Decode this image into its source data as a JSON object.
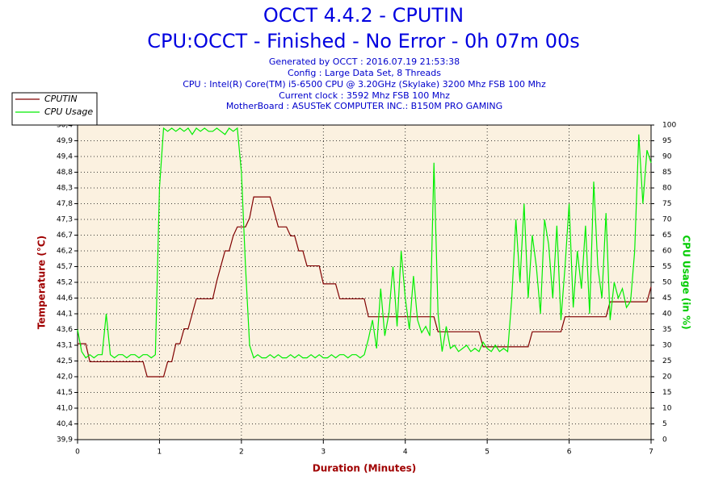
{
  "chart_data": {
    "type": "line",
    "title": "OCCT 4.4.2 - CPUTIN",
    "subtitle": "CPU:OCCT - Finished - No Error - 0h 07m 00s",
    "info": [
      "Generated by OCCT : 2016.07.19 21:53:38",
      "Config : Large Data Set, 8 Threads",
      "CPU : Intel(R) Core(TM) i5-6500 CPU @ 3.20GHz (Skylake) 3200 Mhz FSB 100 Mhz",
      "Current clock : 3592 Mhz FSB 100 Mhz",
      "MotherBoard : ASUSTeK COMPUTER INC.: B150M PRO GAMING"
    ],
    "x_label": "Duration (Minutes)",
    "y_label": "Temperature (°C)",
    "y2_label": "CPU Usage (in %)",
    "grid": true,
    "legend": "upper-left",
    "xlim": [
      0,
      7
    ],
    "xticks": [
      0,
      1,
      2,
      3,
      4,
      5,
      6,
      7
    ],
    "ylim": [
      39.9,
      50.4
    ],
    "yticks": [
      {
        "value": 39.9,
        "label": "39,9"
      },
      {
        "value": 40.425,
        "label": "40,4"
      },
      {
        "value": 40.95,
        "label": "41,0"
      },
      {
        "value": 41.475,
        "label": "41,5"
      },
      {
        "value": 42.0,
        "label": "42,0"
      },
      {
        "value": 42.525,
        "label": "42,5"
      },
      {
        "value": 43.05,
        "label": "43,1"
      },
      {
        "value": 43.575,
        "label": "43,6"
      },
      {
        "value": 44.1,
        "label": "44,1"
      },
      {
        "value": 44.625,
        "label": "44,6"
      },
      {
        "value": 45.15,
        "label": "45,2"
      },
      {
        "value": 45.675,
        "label": "45,7"
      },
      {
        "value": 46.2,
        "label": "46,2"
      },
      {
        "value": 46.725,
        "label": "46,7"
      },
      {
        "value": 47.25,
        "label": "47,3"
      },
      {
        "value": 47.775,
        "label": "47,8"
      },
      {
        "value": 48.3,
        "label": "48,3"
      },
      {
        "value": 48.825,
        "label": "48,8"
      },
      {
        "value": 49.35,
        "label": "49,4"
      },
      {
        "value": 49.875,
        "label": "49,9"
      },
      {
        "value": 50.4,
        "label": "50,4"
      }
    ],
    "y2lim": [
      0,
      100
    ],
    "y2ticks": [
      0,
      5,
      10,
      15,
      20,
      25,
      30,
      35,
      40,
      45,
      50,
      55,
      60,
      65,
      70,
      75,
      80,
      85,
      90,
      95,
      100
    ],
    "x": [
      0,
      0.05,
      0.1,
      0.15,
      0.2,
      0.25,
      0.3,
      0.35,
      0.4,
      0.45,
      0.5,
      0.55,
      0.6,
      0.65,
      0.7,
      0.75,
      0.8,
      0.85,
      0.9,
      0.95,
      1,
      1.05,
      1.1,
      1.15,
      1.2,
      1.25,
      1.3,
      1.35,
      1.4,
      1.45,
      1.5,
      1.55,
      1.6,
      1.65,
      1.7,
      1.75,
      1.8,
      1.85,
      1.9,
      1.95,
      2,
      2.05,
      2.1,
      2.15,
      2.2,
      2.25,
      2.3,
      2.35,
      2.4,
      2.45,
      2.5,
      2.55,
      2.6,
      2.65,
      2.7,
      2.75,
      2.8,
      2.85,
      2.9,
      2.95,
      3,
      3.05,
      3.1,
      3.15,
      3.2,
      3.25,
      3.3,
      3.35,
      3.4,
      3.45,
      3.5,
      3.55,
      3.6,
      3.65,
      3.7,
      3.75,
      3.8,
      3.85,
      3.9,
      3.95,
      4,
      4.05,
      4.1,
      4.15,
      4.2,
      4.25,
      4.3,
      4.35,
      4.4,
      4.45,
      4.5,
      4.55,
      4.6,
      4.65,
      4.7,
      4.75,
      4.8,
      4.85,
      4.9,
      4.95,
      5,
      5.05,
      5.1,
      5.15,
      5.2,
      5.25,
      5.3,
      5.35,
      5.4,
      5.45,
      5.5,
      5.55,
      5.6,
      5.65,
      5.7,
      5.75,
      5.8,
      5.85,
      5.9,
      5.95,
      6,
      6.05,
      6.1,
      6.15,
      6.2,
      6.25,
      6.3,
      6.35,
      6.4,
      6.45,
      6.5,
      6.55,
      6.6,
      6.65,
      6.7,
      6.75,
      6.8,
      6.85,
      6.9,
      6.95,
      7
    ],
    "series": [
      {
        "name": "CPUTIN",
        "color": "#800000",
        "values": [
          43.1,
          43.1,
          43.1,
          42.5,
          42.5,
          42.5,
          42.5,
          42.5,
          42.5,
          42.5,
          42.5,
          42.5,
          42.5,
          42.5,
          42.5,
          42.5,
          42.5,
          42.0,
          42.0,
          42.0,
          42.0,
          42.0,
          42.5,
          42.5,
          43.1,
          43.1,
          43.6,
          43.6,
          44.1,
          44.6,
          44.6,
          44.6,
          44.6,
          44.6,
          45.2,
          45.7,
          46.2,
          46.2,
          46.7,
          47.0,
          47.0,
          47.0,
          47.3,
          48.0,
          48.0,
          48.0,
          48.0,
          48.0,
          47.5,
          47.0,
          47.0,
          47.0,
          46.7,
          46.7,
          46.2,
          46.2,
          45.7,
          45.7,
          45.7,
          45.7,
          45.1,
          45.1,
          45.1,
          45.1,
          44.6,
          44.6,
          44.6,
          44.6,
          44.6,
          44.6,
          44.6,
          44.0,
          44.0,
          44.0,
          44.0,
          44.0,
          44.0,
          44.0,
          44.0,
          44.0,
          44.0,
          44.0,
          44.0,
          44.0,
          44.0,
          44.0,
          44.0,
          44.0,
          43.5,
          43.5,
          43.5,
          43.5,
          43.5,
          43.5,
          43.5,
          43.5,
          43.5,
          43.5,
          43.5,
          43.0,
          43.0,
          43.0,
          43.0,
          43.0,
          43.0,
          43.0,
          43.0,
          43.0,
          43.0,
          43.0,
          43.0,
          43.5,
          43.5,
          43.5,
          43.5,
          43.5,
          43.5,
          43.5,
          43.5,
          44.0,
          44.0,
          44.0,
          44.0,
          44.0,
          44.0,
          44.0,
          44.0,
          44.0,
          44.0,
          44.0,
          44.5,
          44.5,
          44.5,
          44.5,
          44.5,
          44.5,
          44.5,
          44.5,
          44.5,
          44.5,
          45.0
        ]
      },
      {
        "name": "CPU Usage",
        "color": "#00ee00",
        "axis": "y2",
        "values": [
          35,
          28,
          26,
          27,
          26,
          27,
          27,
          40,
          27,
          26,
          27,
          27,
          26,
          27,
          27,
          26,
          27,
          27,
          26,
          27,
          80,
          99,
          98,
          99,
          98,
          99,
          98,
          99,
          97,
          99,
          98,
          99,
          98,
          98,
          99,
          98,
          97,
          99,
          98,
          99,
          85,
          55,
          30,
          26,
          27,
          26,
          26,
          27,
          26,
          27,
          26,
          26,
          27,
          26,
          27,
          26,
          26,
          27,
          26,
          27,
          26,
          26,
          27,
          26,
          27,
          27,
          26,
          27,
          27,
          26,
          27,
          32,
          38,
          29,
          48,
          33,
          40,
          55,
          36,
          60,
          45,
          35,
          52,
          38,
          34,
          36,
          33,
          88,
          40,
          28,
          36,
          29,
          30,
          28,
          29,
          30,
          28,
          29,
          28,
          31,
          29,
          28,
          30,
          28,
          29,
          28,
          45,
          70,
          50,
          75,
          45,
          65,
          55,
          40,
          70,
          62,
          45,
          68,
          38,
          55,
          75,
          42,
          60,
          48,
          68,
          40,
          82,
          55,
          45,
          72,
          38,
          50,
          45,
          48,
          42,
          44,
          60,
          97,
          75,
          92,
          88
        ]
      }
    ]
  }
}
